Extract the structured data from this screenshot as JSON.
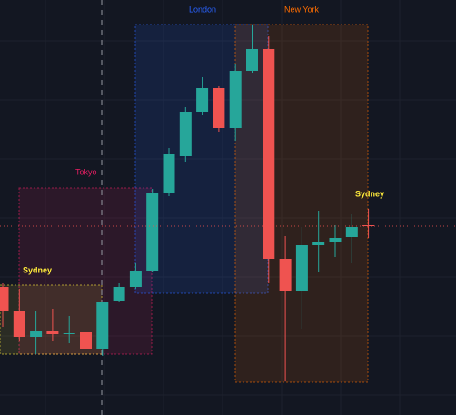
{
  "chart_data": {
    "type": "candlestick",
    "open": [
      141,
      114,
      86,
      92,
      89,
      91,
      73,
      125,
      141,
      159,
      244,
      285,
      334,
      360,
      316,
      379,
      403,
      172,
      136,
      187,
      191,
      196,
      209
    ],
    "high": [
      145,
      139,
      115,
      117,
      109,
      91,
      124,
      145,
      167,
      249,
      294,
      339,
      372,
      362,
      387,
      429,
      417,
      197,
      207,
      225,
      209,
      221,
      227
    ],
    "low": [
      97,
      82,
      67,
      82,
      79,
      73,
      65,
      124,
      139,
      157,
      241,
      279,
      330,
      312,
      302,
      377,
      145,
      37,
      95,
      157,
      174,
      167,
      195
    ],
    "close": [
      114,
      86,
      93,
      89,
      90,
      73,
      124,
      141,
      159,
      244,
      287,
      334,
      360,
      316,
      379,
      403,
      172,
      137,
      187,
      190,
      195,
      207,
      208
    ],
    "ylim": [
      0,
      457
    ],
    "up_color": "#26a69a",
    "down_color": "#ef5350",
    "sessions": [
      {
        "name": "Sydney",
        "color": "#ffeb3b"
      },
      {
        "name": "Tokyo",
        "color": "#e91e63"
      },
      {
        "name": "London",
        "color": "#2962ff"
      },
      {
        "name": "New York",
        "color": "#ff6d00"
      },
      {
        "name": "Sydney",
        "color": "#ffeb3b"
      }
    ]
  }
}
